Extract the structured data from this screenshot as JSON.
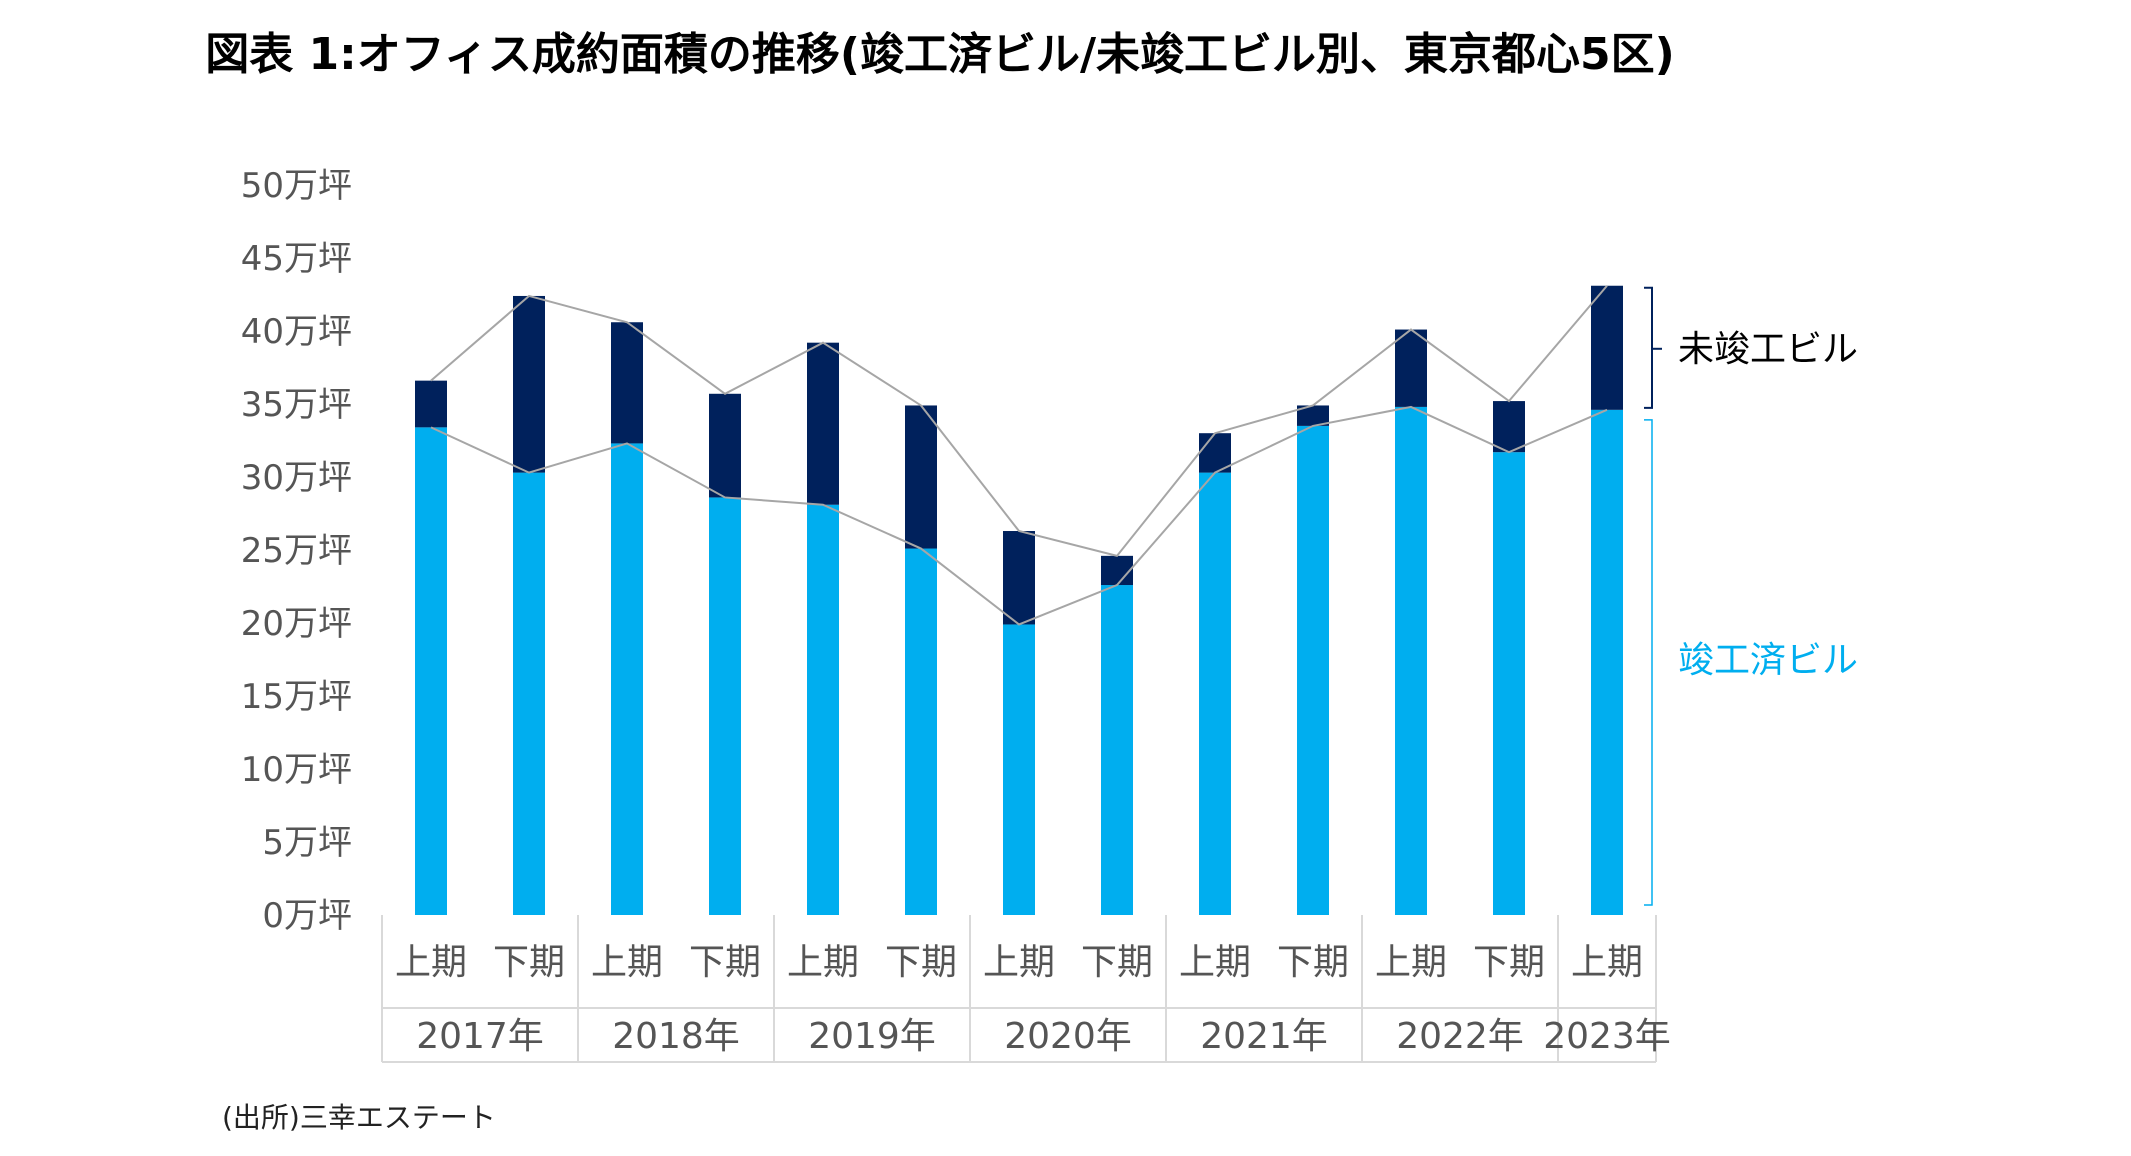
{
  "title": "図表 1:オフィス成約面積の推移(竣工済ビル/未竣工ビル別、東京都心5区)",
  "source": "(出所)三幸エステート",
  "colors": {
    "completed": "#00aeef",
    "uncompleted": "#00215c",
    "line": "#a6a6a6",
    "grid": "#d9d9d9"
  },
  "chart_data": {
    "type": "bar",
    "stacked": true,
    "title": "図表 1:オフィス成約面積の推移(竣工済ビル/未竣工ビル別、東京都心5区)",
    "unit": "万坪",
    "ylim": [
      0,
      50
    ],
    "ytick_step": 5,
    "yticks": [
      "0万坪",
      "5万坪",
      "10万坪",
      "15万坪",
      "20万坪",
      "25万坪",
      "30万坪",
      "35万坪",
      "40万坪",
      "45万坪",
      "50万坪"
    ],
    "categories": [
      "上期",
      "下期",
      "上期",
      "下期",
      "上期",
      "下期",
      "上期",
      "下期",
      "上期",
      "下期",
      "上期",
      "下期",
      "上期"
    ],
    "years": [
      {
        "label": "2017年",
        "span": 2
      },
      {
        "label": "2018年",
        "span": 2
      },
      {
        "label": "2019年",
        "span": 2
      },
      {
        "label": "2020年",
        "span": 2
      },
      {
        "label": "2021年",
        "span": 2
      },
      {
        "label": "2022年",
        "span": 2
      },
      {
        "label": "2023年",
        "span": 1
      }
    ],
    "series": [
      {
        "name": "竣工済ビル",
        "values": [
          33.4,
          30.3,
          32.3,
          28.6,
          28.1,
          25.1,
          19.9,
          22.6,
          30.3,
          33.5,
          34.8,
          31.7,
          34.6
        ]
      },
      {
        "name": "未竣工ビル",
        "values": [
          3.2,
          12.1,
          8.3,
          7.1,
          11.1,
          9.8,
          6.4,
          2.0,
          2.7,
          1.4,
          5.3,
          3.5,
          8.5
        ]
      }
    ],
    "legend": [
      "未竣工ビル",
      "竣工済ビル"
    ],
    "legend_position": "right"
  }
}
